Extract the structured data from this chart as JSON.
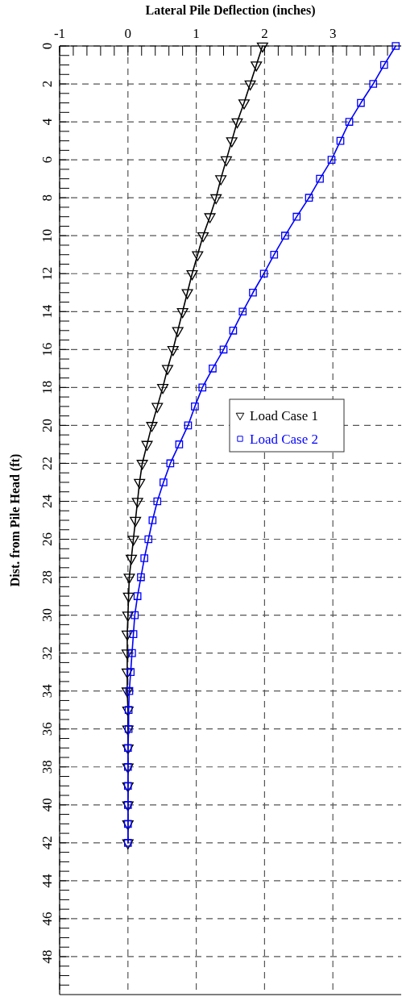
{
  "chart_data": {
    "type": "line",
    "xlabel": "Lateral Pile Deflection (inches)",
    "ylabel": "Dist. from Pile Head (ft)",
    "xlim": [
      -1,
      4
    ],
    "ylim": [
      50,
      0
    ],
    "xticks": [
      -1,
      {
        "value": -0.8,
        "label": null
      },
      {
        "value": -0.6,
        "label": null
      },
      {
        "value": -0.4,
        "label": null
      },
      {
        "value": -0.2,
        "label": null
      },
      0,
      {
        "value": 0.2,
        "label": null
      },
      {
        "value": 0.4,
        "label": null
      },
      {
        "value": 0.6,
        "label": null
      },
      {
        "value": 0.8,
        "label": null
      },
      1,
      {
        "value": 1.2,
        "label": null
      },
      {
        "value": 1.4,
        "label": null
      },
      {
        "value": 1.6,
        "label": null
      },
      {
        "value": 1.8,
        "label": null
      },
      2,
      {
        "value": 2.2,
        "label": null
      },
      {
        "value": 2.4,
        "label": null
      },
      {
        "value": 2.6,
        "label": null
      },
      {
        "value": 2.8,
        "label": null
      },
      3,
      {
        "value": 3.2,
        "label": null
      },
      {
        "value": 3.4,
        "label": null
      },
      {
        "value": 3.6,
        "label": null
      },
      {
        "value": 3.8,
        "label": null
      }
    ],
    "yticks": [
      0,
      {
        "value": 0.5,
        "label": null
      },
      {
        "value": 1,
        "label": null
      },
      {
        "value": 1.5,
        "label": null
      },
      2,
      {
        "value": 2.5,
        "label": null
      },
      {
        "value": 3,
        "label": null
      },
      {
        "value": 3.5,
        "label": null
      },
      4,
      {
        "value": 4.5,
        "label": null
      },
      {
        "value": 5,
        "label": null
      },
      {
        "value": 5.5,
        "label": null
      },
      6,
      {
        "value": 6.5,
        "label": null
      },
      {
        "value": 7,
        "label": null
      },
      {
        "value": 7.5,
        "label": null
      },
      8,
      {
        "value": 8.5,
        "label": null
      },
      {
        "value": 9,
        "label": null
      },
      {
        "value": 9.5,
        "label": null
      },
      10,
      {
        "value": 10.5,
        "label": null
      },
      {
        "value": 11,
        "label": null
      },
      {
        "value": 11.5,
        "label": null
      },
      12,
      {
        "value": 12.5,
        "label": null
      },
      {
        "value": 13,
        "label": null
      },
      {
        "value": 13.5,
        "label": null
      },
      14,
      {
        "value": 14.5,
        "label": null
      },
      {
        "value": 15,
        "label": null
      },
      {
        "value": 15.5,
        "label": null
      },
      16,
      {
        "value": 16.5,
        "label": null
      },
      {
        "value": 17,
        "label": null
      },
      {
        "value": 17.5,
        "label": null
      },
      18,
      {
        "value": 18.5,
        "label": null
      },
      {
        "value": 19,
        "label": null
      },
      {
        "value": 19.5,
        "label": null
      },
      20,
      {
        "value": 20.5,
        "label": null
      },
      {
        "value": 21,
        "label": null
      },
      {
        "value": 21.5,
        "label": null
      },
      22,
      {
        "value": 22.5,
        "label": null
      },
      {
        "value": 23,
        "label": null
      },
      {
        "value": 23.5,
        "label": null
      },
      24,
      {
        "value": 24.5,
        "label": null
      },
      {
        "value": 25,
        "label": null
      },
      {
        "value": 25.5,
        "label": null
      },
      26,
      {
        "value": 26.5,
        "label": null
      },
      {
        "value": 27,
        "label": null
      },
      {
        "value": 27.5,
        "label": null
      },
      28,
      {
        "value": 28.5,
        "label": null
      },
      {
        "value": 29,
        "label": null
      },
      {
        "value": 29.5,
        "label": null
      },
      30,
      {
        "value": 30.5,
        "label": null
      },
      {
        "value": 31,
        "label": null
      },
      {
        "value": 31.5,
        "label": null
      },
      32,
      {
        "value": 32.5,
        "label": null
      },
      {
        "value": 33,
        "label": null
      },
      {
        "value": 33.5,
        "label": null
      },
      34,
      {
        "value": 34.5,
        "label": null
      },
      {
        "value": 35,
        "label": null
      },
      {
        "value": 35.5,
        "label": null
      },
      36,
      {
        "value": 36.5,
        "label": null
      },
      {
        "value": 37,
        "label": null
      },
      {
        "value": 37.5,
        "label": null
      },
      38,
      {
        "value": 38.5,
        "label": null
      },
      {
        "value": 39,
        "label": null
      },
      {
        "value": 39.5,
        "label": null
      },
      40,
      {
        "value": 40.5,
        "label": null
      },
      {
        "value": 41,
        "label": null
      },
      {
        "value": 41.5,
        "label": null
      },
      42,
      {
        "value": 42.5,
        "label": null
      },
      {
        "value": 43,
        "label": null
      },
      {
        "value": 43.5,
        "label": null
      },
      44,
      {
        "value": 44.5,
        "label": null
      },
      {
        "value": 45,
        "label": null
      },
      {
        "value": 45.5,
        "label": null
      },
      46,
      {
        "value": 46.5,
        "label": null
      },
      {
        "value": 47,
        "label": null
      },
      {
        "value": 47.5,
        "label": null
      },
      48,
      {
        "value": 48.5,
        "label": null
      },
      {
        "value": 49,
        "label": null
      },
      {
        "value": 49.5,
        "label": null
      }
    ],
    "grid": true,
    "legend": "right",
    "line_style": "solid",
    "series": [
      {
        "name": "Load Case 1",
        "color": "#000000",
        "marker": "triangle",
        "x": [
          1.97,
          1.88,
          1.79,
          1.7,
          1.6,
          1.52,
          1.44,
          1.36,
          1.29,
          1.2,
          1.1,
          1.02,
          0.94,
          0.87,
          0.8,
          0.73,
          0.66,
          0.58,
          0.51,
          0.43,
          0.35,
          0.28,
          0.21,
          0.17,
          0.14,
          0.11,
          0.08,
          0.05,
          0.02,
          0.01,
          0,
          -0.01,
          -0.01,
          -0.01,
          -0.01,
          0,
          0,
          0,
          0,
          0,
          0,
          0,
          0
        ],
        "values": [
          0,
          1,
          2,
          3,
          4,
          5,
          6,
          7,
          8,
          9,
          10,
          11,
          12,
          13,
          14,
          15,
          16,
          17,
          18,
          19,
          20,
          21,
          22,
          23,
          24,
          25,
          26,
          27,
          28,
          29,
          30,
          31,
          32,
          33,
          34,
          35,
          36,
          37,
          38,
          39,
          40,
          41,
          42
        ]
      },
      {
        "name": "Load Case 2",
        "color": "#0000ff",
        "marker": "square",
        "x": [
          3.92,
          3.75,
          3.59,
          3.41,
          3.24,
          3.11,
          2.98,
          2.81,
          2.65,
          2.47,
          2.3,
          2.14,
          1.99,
          1.83,
          1.68,
          1.54,
          1.4,
          1.24,
          1.09,
          0.98,
          0.88,
          0.75,
          0.62,
          0.52,
          0.43,
          0.36,
          0.3,
          0.24,
          0.19,
          0.14,
          0.1,
          0.08,
          0.06,
          0.04,
          0.02,
          0.01,
          0.01,
          0,
          0,
          0,
          0,
          0,
          0
        ],
        "values": [
          0,
          1,
          2,
          3,
          4,
          5,
          6,
          7,
          8,
          9,
          10,
          11,
          12,
          13,
          14,
          15,
          16,
          17,
          18,
          19,
          20,
          21,
          22,
          23,
          24,
          25,
          26,
          27,
          28,
          29,
          30,
          31,
          32,
          33,
          34,
          35,
          36,
          37,
          38,
          39,
          40,
          41,
          42
        ]
      }
    ]
  }
}
